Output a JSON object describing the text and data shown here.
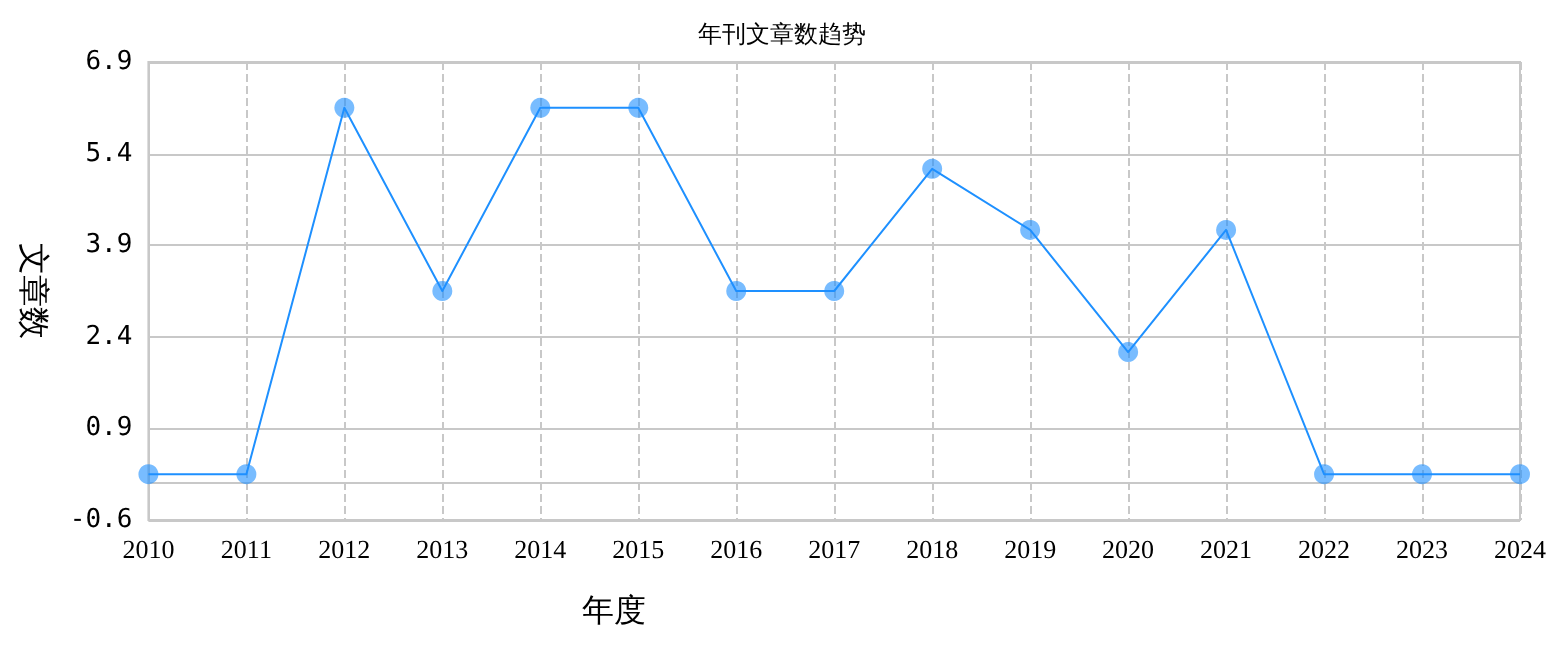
{
  "chart_data": {
    "type": "line",
    "title": "年刊文章数趋势",
    "xlabel": "年度",
    "ylabel": "文章数",
    "categories": [
      "2010",
      "2011",
      "2012",
      "2013",
      "2014",
      "2015",
      "2016",
      "2017",
      "2018",
      "2019",
      "2020",
      "2021",
      "2022",
      "2023",
      "2024"
    ],
    "series": [
      {
        "color": "#1e90ff",
        "values": [
          0.15,
          0.15,
          6.15,
          3.15,
          6.15,
          6.15,
          3.15,
          3.15,
          5.15,
          4.15,
          2.15,
          4.15,
          0.15,
          0.15,
          0.15
        ]
      }
    ],
    "ylim": [
      -0.6,
      6.9
    ],
    "yticks": [
      -0.6,
      0.9,
      2.4,
      3.9,
      5.4,
      6.9
    ],
    "grid": true,
    "marker": "circle",
    "line_style": "solid"
  }
}
